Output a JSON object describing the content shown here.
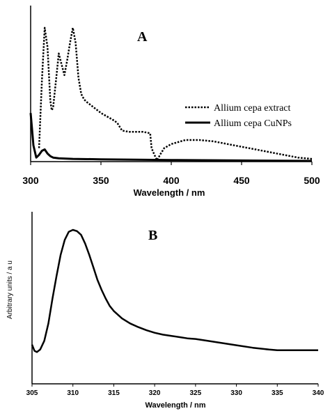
{
  "chart_data": [
    {
      "panel": "A",
      "type": "line",
      "xlabel": "Wavelength / nm",
      "ylabel": "",
      "xlim": [
        300,
        500
      ],
      "ylim": [
        0,
        1
      ],
      "xticks": [
        "300",
        "350",
        "400",
        "450",
        "500"
      ],
      "legend_placement": "right",
      "grid": false,
      "series": [
        {
          "name": "Allium cepa extract",
          "style": "dotted",
          "x": [
            306,
            308,
            310,
            312,
            314,
            315,
            316,
            318,
            320,
            322,
            324,
            326,
            328,
            330,
            332,
            334,
            336,
            338,
            340,
            345,
            350,
            355,
            360,
            362,
            365,
            370,
            375,
            380,
            385,
            386,
            388,
            390,
            392,
            395,
            400,
            410,
            420,
            430,
            440,
            450,
            460,
            470,
            480,
            490,
            500
          ],
          "y": [
            0.1,
            0.6,
            0.99,
            0.85,
            0.45,
            0.38,
            0.4,
            0.6,
            0.8,
            0.72,
            0.64,
            0.75,
            0.88,
            0.99,
            0.88,
            0.62,
            0.5,
            0.46,
            0.44,
            0.4,
            0.36,
            0.33,
            0.3,
            0.28,
            0.23,
            0.22,
            0.22,
            0.22,
            0.21,
            0.1,
            0.05,
            0.01,
            0.05,
            0.1,
            0.13,
            0.16,
            0.16,
            0.15,
            0.13,
            0.11,
            0.09,
            0.07,
            0.05,
            0.03,
            0.02
          ]
        },
        {
          "name": "Allium cepa CuNPs",
          "style": "solid",
          "x": [
            300,
            302,
            304,
            306,
            308,
            310,
            312,
            314,
            316,
            320,
            330,
            350,
            400,
            450,
            500
          ],
          "y": [
            0.36,
            0.12,
            0.03,
            0.05,
            0.08,
            0.09,
            0.06,
            0.04,
            0.03,
            0.025,
            0.02,
            0.017,
            0.012,
            0.008,
            0.005
          ]
        }
      ]
    },
    {
      "panel": "B",
      "type": "line",
      "xlabel": "Wavelength / nm",
      "ylabel": "Arbitrary units / a u",
      "xlim": [
        305,
        340
      ],
      "ylim": [
        0,
        1
      ],
      "xticks": [
        "305",
        "310",
        "315",
        "320",
        "325",
        "330",
        "335",
        "340"
      ],
      "grid": false,
      "series": [
        {
          "style": "solid",
          "x": [
            305,
            305.3,
            305.6,
            306,
            306.5,
            307,
            307.5,
            308,
            308.5,
            309,
            309.5,
            310,
            310.5,
            311,
            311.5,
            312,
            312.5,
            313,
            313.5,
            314,
            314.5,
            315,
            316,
            317,
            318,
            319,
            320,
            321,
            322,
            323,
            324,
            325,
            326,
            328,
            330,
            332,
            334,
            335,
            336,
            338,
            340
          ],
          "y": [
            0.08,
            0.03,
            0.02,
            0.04,
            0.11,
            0.25,
            0.45,
            0.63,
            0.8,
            0.92,
            0.985,
            1.0,
            0.99,
            0.96,
            0.89,
            0.8,
            0.7,
            0.6,
            0.52,
            0.45,
            0.39,
            0.35,
            0.29,
            0.25,
            0.22,
            0.195,
            0.175,
            0.16,
            0.15,
            0.14,
            0.13,
            0.125,
            0.115,
            0.095,
            0.075,
            0.055,
            0.04,
            0.035,
            0.035,
            0.035,
            0.035
          ]
        }
      ]
    }
  ]
}
